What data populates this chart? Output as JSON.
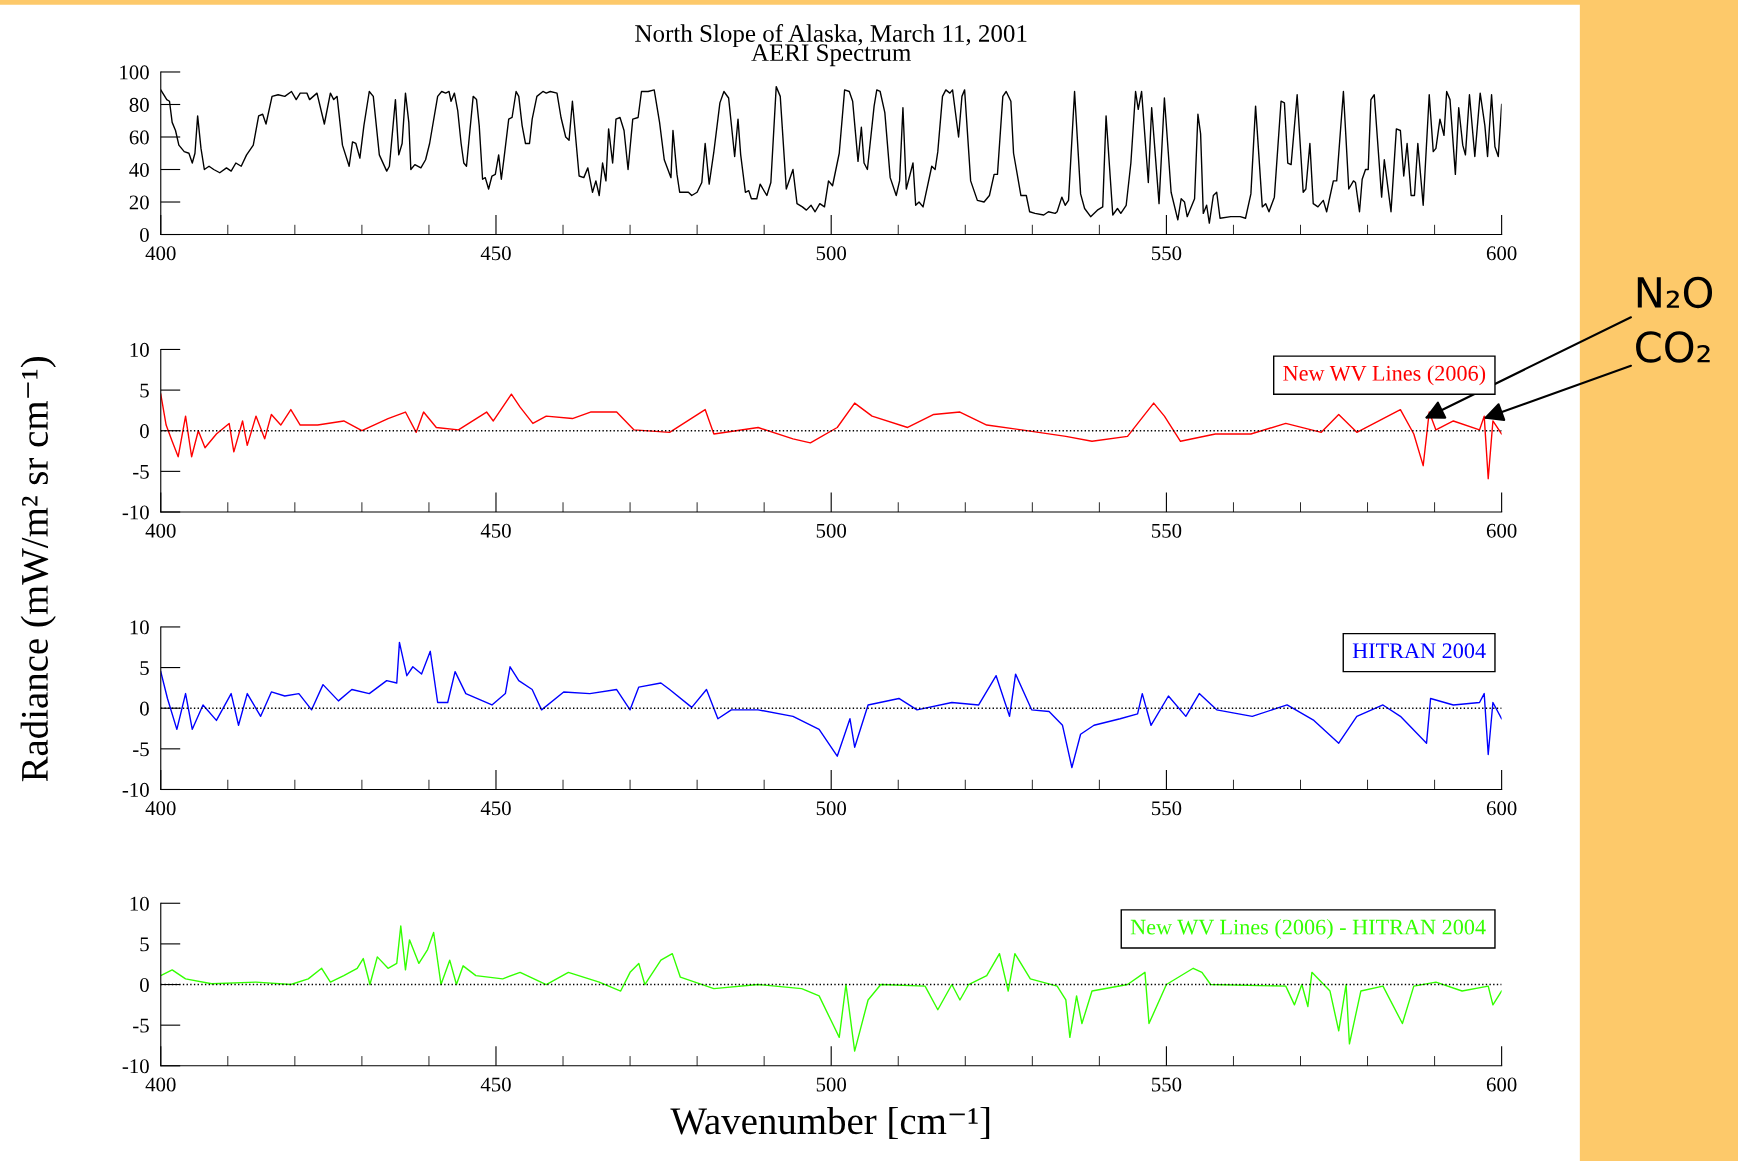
{
  "chart_data": [
    {
      "type": "line",
      "title": "North Slope of Alaska, March 11, 2001\nAERI Spectrum",
      "xlim": [
        400,
        600
      ],
      "xticks": [
        400,
        450,
        500,
        550,
        600
      ],
      "ylim": [
        0,
        100
      ],
      "yticks": [
        0,
        20,
        40,
        60,
        80,
        100
      ],
      "grid": false,
      "legend": false,
      "marker": "none",
      "line_style": "solid",
      "series": [
        {
          "color": "#000000",
          "x": [
            400,
            400.9,
            401.3,
            401.7,
            402.2,
            402.7,
            403.5,
            404.2,
            404.7,
            405.1,
            405.5,
            406,
            406.5,
            407.2,
            407.9,
            408.8,
            409.8,
            410.5,
            411.2,
            412,
            412.8,
            413.8,
            414.6,
            415.2,
            415.7,
            416.6,
            417.5,
            418.5,
            419.5,
            420.2,
            420.8,
            421.8,
            422.2,
            423.3,
            424.4,
            425.3,
            425.8,
            426.3,
            427.1,
            428.1,
            428.6,
            429.1,
            429.7,
            430.3,
            431.1,
            431.7,
            432.6,
            433.7,
            434.1,
            435,
            435.5,
            436,
            436.5,
            437,
            437.3,
            437.9,
            438.8,
            439.5,
            440.1,
            441.3,
            441.9,
            442.5,
            443,
            443.3,
            443.8,
            444.3,
            444.8,
            445.2,
            445.6,
            446.6,
            447.1,
            447.5,
            448,
            448.4,
            448.9,
            449.4,
            449.9,
            450.4,
            450.8,
            451.2,
            451.9,
            452.4,
            453,
            453.4,
            453.9,
            454.4,
            455,
            455.4,
            456.1,
            457,
            457.5,
            458.1,
            459.1,
            459.7,
            460.4,
            460.9,
            461.4,
            462.4,
            463.1,
            463.7,
            464.4,
            464.9,
            465.4,
            465.9,
            466.4,
            466.8,
            467.4,
            467.9,
            468.5,
            469.1,
            469.7,
            470.4,
            471.2,
            471.7,
            472.7,
            473.6,
            474.4,
            475.1,
            476.1,
            476.4,
            477,
            477.4,
            478,
            478.7,
            479.2,
            480,
            480.7,
            481.2,
            481.8,
            482.5,
            483.4,
            484,
            484.7,
            485.6,
            486.1,
            486.5,
            487.2,
            487.7,
            488.1,
            488.9,
            489.4,
            490.4,
            491,
            491.8,
            492.4,
            493.3,
            494.3,
            494.9,
            495.7,
            496.3,
            497,
            497.6,
            498.3,
            499,
            499.6,
            500.2,
            501.2,
            502,
            502.7,
            503.2,
            504,
            504.5,
            504.9,
            505.4,
            506.4,
            506.8,
            507.3,
            508,
            508.8,
            509.7,
            510.2,
            510.7,
            511.2,
            512.2,
            512.6,
            513.1,
            513.7,
            515,
            515.5,
            515.9,
            516.6,
            517.1,
            517.7,
            518.1,
            519,
            519.5,
            519.9,
            520.8,
            521.8,
            522.8,
            523.6,
            524.3,
            524.8,
            525.6,
            526.1,
            526.8,
            527.2,
            528.3,
            529.1,
            529.6,
            530.4,
            531.7,
            532.4,
            533.4,
            533.7,
            534.4,
            534.9,
            535.4,
            536.3,
            537.2,
            537.8,
            538.7,
            539.7,
            540.5,
            541,
            542,
            542.7,
            543.2,
            544,
            544.7,
            545.4,
            545.8,
            546.3,
            547.3,
            547.8,
            548.9,
            549.7,
            550.7,
            551.7,
            552.2,
            552.7,
            553.1,
            554.2,
            554.7,
            555.1,
            555.5,
            556,
            556.4,
            557,
            557.5,
            558,
            559.6,
            561,
            561.8,
            562.6,
            563.3,
            564.3,
            564.8,
            565.3,
            566.1,
            567.1,
            567.6,
            568.1,
            568.6,
            569.5,
            570.4,
            570.8,
            571.4,
            571.9,
            572.6,
            573.4,
            573.9,
            574.9,
            575.4,
            576.4,
            577.2,
            577.9,
            578.2,
            578.8,
            579.2,
            579.7,
            580.1,
            580.5,
            581,
            582.1,
            582.5,
            583.5,
            584.3,
            584.9,
            585.4,
            585.9,
            586.5,
            587,
            587.5,
            588.3,
            589.2,
            589.8,
            590.2,
            590.8,
            591.4,
            591.8,
            592.3,
            593.1,
            593.6,
            594.2,
            594.6,
            595.2,
            596,
            596.8,
            597.5,
            597.9,
            598.5,
            599,
            599.5,
            600
          ],
          "values": [
            89,
            83,
            82,
            69,
            64,
            55,
            51,
            50,
            44,
            50,
            73,
            53,
            40,
            42,
            40,
            38,
            41,
            39,
            44,
            42,
            49,
            55,
            73,
            74,
            68,
            85,
            86,
            85,
            88,
            83,
            87,
            87,
            83,
            87,
            68,
            87,
            83,
            85,
            55,
            42,
            57,
            56,
            47,
            67,
            88,
            85,
            49,
            39,
            42,
            83,
            49,
            56,
            87,
            69,
            40,
            43,
            41,
            46,
            56,
            85,
            88,
            87,
            88,
            82,
            87,
            76,
            56,
            44,
            42,
            85,
            83,
            67,
            34,
            35,
            28,
            36,
            37,
            49,
            34,
            47,
            71,
            72,
            88,
            85,
            67,
            56,
            56,
            71,
            85,
            88,
            87,
            88,
            87,
            72,
            60,
            58,
            82,
            36,
            35,
            41,
            26,
            33,
            24,
            44,
            33,
            65,
            44,
            71,
            72,
            64,
            40,
            71,
            72,
            88,
            88,
            89,
            69,
            46,
            35,
            64,
            37,
            26,
            26,
            26,
            24,
            26,
            32,
            56,
            31,
            51,
            81,
            88,
            84,
            48,
            71,
            49,
            26,
            27,
            22,
            22,
            31,
            24,
            32,
            91,
            85,
            28,
            40,
            19,
            17,
            15,
            18,
            14,
            19,
            17,
            33,
            30,
            50,
            89,
            88,
            82,
            45,
            66,
            44,
            40,
            79,
            89,
            88,
            75,
            35,
            24,
            33,
            78,
            28,
            44,
            18,
            20,
            17,
            42,
            40,
            51,
            85,
            89,
            87,
            89,
            60,
            85,
            89,
            33,
            21,
            20,
            24,
            37,
            37,
            85,
            88,
            82,
            50,
            24,
            24,
            14,
            13,
            12,
            14,
            13,
            14,
            23,
            18,
            21,
            88,
            25,
            16,
            11,
            15,
            17,
            73,
            12,
            16,
            13,
            18,
            44,
            88,
            77,
            88,
            32,
            78,
            19,
            84,
            26,
            9,
            22,
            20,
            11,
            22,
            74,
            62,
            13,
            18,
            7,
            24,
            26,
            10,
            11,
            11,
            10,
            25,
            79,
            17,
            19,
            14,
            23,
            82,
            81,
            44,
            43,
            86,
            26,
            28,
            56,
            19,
            17,
            21,
            14,
            33,
            33,
            88,
            28,
            33,
            32,
            14,
            34,
            40,
            40,
            83,
            86,
            23,
            46,
            14,
            65,
            64,
            36,
            56,
            24,
            24,
            56,
            18,
            86,
            51,
            53,
            71,
            61,
            88,
            83,
            37,
            78,
            55,
            49,
            86,
            48,
            87,
            67,
            48,
            86,
            54,
            48,
            80
          ]
        }
      ]
    },
    {
      "type": "line",
      "ylabel": "Radiance (mW/m² sr cm⁻¹)",
      "xlim": [
        400,
        600
      ],
      "xticks": [
        400,
        450,
        500,
        550,
        600
      ],
      "ylim": [
        -10,
        10
      ],
      "yticks": [
        -10,
        -5,
        0,
        5,
        10
      ],
      "grid": false,
      "legend": "top right",
      "marker": "none",
      "line_style": "solid",
      "ref_lines": [
        {
          "axis": "y",
          "value": 0,
          "color": "#000000",
          "line_style": "dotted"
        }
      ],
      "annotations": [
        {
          "text": "N₂O",
          "x": 588.5,
          "y": 1.5
        },
        {
          "text": "CO₂",
          "x": 597.3,
          "y": 1.5
        }
      ],
      "series": [
        {
          "name": "New WV Lines (2006)",
          "color": "#ff0000",
          "x": [
            400,
            400.8,
            401.7,
            402.6,
            403.7,
            404.6,
            405.6,
            406.6,
            408.3,
            410.2,
            410.9,
            412.2,
            412.9,
            414.2,
            415.5,
            416.5,
            417.9,
            419.4,
            420.8,
            423.4,
            427.3,
            430,
            433.9,
            436.5,
            438.1,
            439.2,
            441.1,
            444.4,
            448.6,
            449.6,
            452.3,
            453.6,
            455.5,
            457.5,
            461.4,
            464.1,
            468,
            470.6,
            475.9,
            481.2,
            482.5,
            489.1,
            494.3,
            496.9,
            500.9,
            503.5,
            506.1,
            511.4,
            515.3,
            519.2,
            523.2,
            528.4,
            535,
            538.9,
            544.2,
            548.1,
            549.7,
            552.1,
            557.3,
            562.6,
            567.8,
            573.1,
            575.7,
            578.4,
            584.9,
            586.9,
            588.3,
            589.2,
            590.2,
            592.8,
            596.7,
            597.4,
            598,
            598.7,
            600
          ],
          "values": [
            4.5,
            0.7,
            -1.3,
            -3.2,
            1.8,
            -3.2,
            0,
            -2.1,
            -0.4,
            0.9,
            -2.6,
            1.2,
            -1.8,
            1.8,
            -1,
            2,
            0.7,
            2.6,
            0.7,
            0.7,
            1.2,
            0,
            1.5,
            2.3,
            -0.2,
            2.3,
            0.4,
            0.1,
            2.3,
            1.2,
            4.5,
            2.9,
            0.9,
            1.8,
            1.5,
            2.3,
            2.3,
            0.1,
            -0.2,
            2.6,
            -0.4,
            0.4,
            -1,
            -1.5,
            0.4,
            3.4,
            1.8,
            0.4,
            2,
            2.3,
            0.7,
            0.1,
            -0.7,
            -1.3,
            -0.7,
            3.4,
            1.8,
            -1.3,
            -0.4,
            -0.4,
            0.9,
            -0.2,
            2,
            -0.2,
            2.6,
            -0.4,
            -4.3,
            2.3,
            0.1,
            1.2,
            0.1,
            1.8,
            -5.9,
            1.2,
            -0.4
          ]
        }
      ]
    },
    {
      "type": "line",
      "xlim": [
        400,
        600
      ],
      "xticks": [
        400,
        450,
        500,
        550,
        600
      ],
      "ylim": [
        -10,
        10
      ],
      "yticks": [
        -10,
        -5,
        0,
        5,
        10
      ],
      "grid": false,
      "legend": "top right",
      "marker": "none",
      "line_style": "solid",
      "ref_lines": [
        {
          "axis": "y",
          "value": 0,
          "color": "#000000",
          "line_style": "dotted"
        }
      ],
      "series": [
        {
          "name": "HITRAN 2004",
          "color": "#0000ff",
          "x": [
            400,
            401,
            402.4,
            403.7,
            404.7,
            406.3,
            408.3,
            410.5,
            411.6,
            412.9,
            414.9,
            416.5,
            418.5,
            420.6,
            422.5,
            424.2,
            426.5,
            428.5,
            431.1,
            433.7,
            435.2,
            435.6,
            436.7,
            437.6,
            438.9,
            440.2,
            441.3,
            442.8,
            443.9,
            445.5,
            449.4,
            451.4,
            452.1,
            453.4,
            455.4,
            456.8,
            460.1,
            464,
            468,
            470,
            471.3,
            474.6,
            475.9,
            479.2,
            481.4,
            483.1,
            485.1,
            489.1,
            494.3,
            498.2,
            500.9,
            502.8,
            503.5,
            505.5,
            510.1,
            512.8,
            518,
            522,
            524.6,
            526.6,
            527.5,
            529.9,
            532.5,
            534.5,
            535.9,
            537.2,
            539.2,
            543.1,
            545.7,
            546.4,
            547.7,
            550.3,
            552.9,
            554.9,
            557.5,
            562.8,
            568,
            572,
            575.7,
            578.4,
            582.3,
            584.9,
            588.8,
            589.4,
            592.8,
            596.7,
            597.4,
            598,
            598.7,
            600
          ],
          "values": [
            4.5,
            1.2,
            -2.6,
            1.8,
            -2.6,
            0.4,
            -1.5,
            1.8,
            -2.1,
            1.8,
            -1,
            2,
            1.5,
            1.8,
            -0.2,
            2.9,
            0.9,
            2.3,
            1.8,
            3.4,
            3.1,
            8.1,
            4,
            5.1,
            4.2,
            7,
            0.7,
            0.7,
            4.5,
            1.8,
            0.4,
            1.8,
            5.1,
            3.4,
            2.3,
            -0.2,
            2,
            1.8,
            2.3,
            -0.2,
            2.6,
            3.1,
            2.3,
            0.1,
            2.3,
            -1.3,
            -0.2,
            -0.2,
            -1,
            -2.6,
            -5.9,
            -1.3,
            -4.8,
            0.4,
            1.2,
            -0.2,
            0.7,
            0.4,
            4,
            -1,
            4.2,
            -0.2,
            -0.4,
            -2.1,
            -7.3,
            -3.2,
            -2.1,
            -1.3,
            -0.7,
            1.8,
            -2.1,
            1.5,
            -1,
            1.8,
            -0.2,
            -1,
            0.4,
            -1.5,
            -4.3,
            -1,
            0.4,
            -1,
            -4.3,
            1.2,
            0.4,
            0.7,
            1.8,
            -5.7,
            0.7,
            -1.3
          ]
        }
      ]
    },
    {
      "type": "line",
      "xlabel": "Wavenumber [cm⁻¹]",
      "xlim": [
        400,
        600
      ],
      "xticks": [
        400,
        450,
        500,
        550,
        600
      ],
      "ylim": [
        -10,
        10
      ],
      "yticks": [
        -10,
        -5,
        0,
        5,
        10
      ],
      "grid": false,
      "legend": "top right",
      "marker": "none",
      "line_style": "solid",
      "ref_lines": [
        {
          "axis": "y",
          "value": 0,
          "color": "#000000",
          "line_style": "dotted"
        }
      ],
      "series": [
        {
          "name": "New WV Lines (2006) - HITRAN 2004",
          "color": "#33ff00",
          "x": [
            400,
            401.7,
            403.7,
            407.6,
            414.2,
            419.4,
            422,
            424,
            425.3,
            427.3,
            429.3,
            430.2,
            431.2,
            432.3,
            433.9,
            435.2,
            435.8,
            436.5,
            437.1,
            438.5,
            439.8,
            440.7,
            441.8,
            443.1,
            444.1,
            445.1,
            447,
            451,
            453.6,
            457.5,
            460.8,
            465.4,
            468.6,
            470,
            471.3,
            472.2,
            474.6,
            476.3,
            477.5,
            482.5,
            489.1,
            495.6,
            498.2,
            500.2,
            501.2,
            502.2,
            503.5,
            505.5,
            507.4,
            514,
            515.9,
            518,
            519.2,
            520.5,
            523.2,
            525.1,
            526.4,
            527.4,
            529.7,
            533.7,
            535,
            535.6,
            536.6,
            537.4,
            538.9,
            544.2,
            546.8,
            547.4,
            550,
            554,
            555.3,
            556.6,
            567.8,
            569.1,
            570.2,
            571.1,
            571.7,
            574.4,
            575.7,
            576.8,
            577.3,
            579,
            582.3,
            585.2,
            586.9,
            590.2,
            594.1,
            598,
            598.7,
            600
          ],
          "values": [
            1.1,
            1.8,
            0.7,
            0.1,
            0.3,
            0,
            0.7,
            2,
            0.3,
            1.1,
            2,
            3.2,
            0,
            3.4,
            2,
            2.6,
            7.2,
            1.8,
            5.5,
            2.6,
            4.3,
            6.4,
            0,
            3,
            0,
            2.3,
            1.1,
            0.7,
            1.5,
            0,
            1.5,
            0.3,
            -0.8,
            1.5,
            2.6,
            0,
            3,
            3.8,
            0.9,
            -0.5,
            0,
            -0.5,
            -1.4,
            -4.8,
            -6.5,
            0,
            -8.2,
            -1.9,
            0,
            -0.2,
            -3.1,
            0,
            -1.9,
            0,
            1.1,
            3.8,
            -0.8,
            3.8,
            0.7,
            -0.2,
            -1.9,
            -6.5,
            -1.4,
            -4.8,
            -0.8,
            0,
            1.5,
            -4.8,
            0,
            2,
            1.5,
            0,
            -0.2,
            -2.5,
            0,
            -2.7,
            1.5,
            -0.8,
            -5.7,
            0,
            -7.3,
            -0.8,
            -0.2,
            -4.8,
            -0.2,
            0.3,
            -0.8,
            -0.2,
            -2.5,
            -0.8
          ]
        }
      ]
    }
  ]
}
